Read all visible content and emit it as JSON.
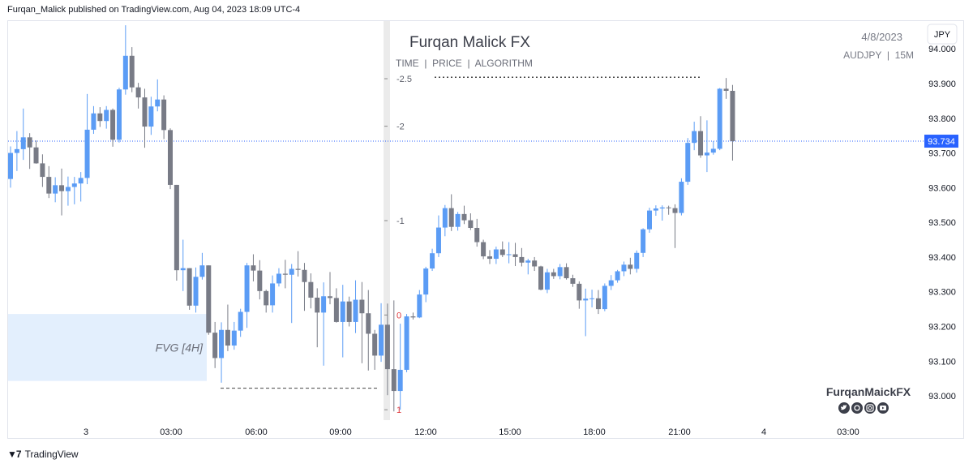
{
  "header": {
    "publish_line": "Furqan_Malick published on TradingView.com, Aug 04, 2023 18:09 UTC-4"
  },
  "overlay": {
    "brand_title": "Furqan Malick FX",
    "brand_subtitle": "TIME  |  PRICE  |  ALGORITHM",
    "date": "4/8/2023",
    "symbol_line": "AUDJPY  |  15M",
    "currency_button": "JPY",
    "fvg_label": "FVG [4H]",
    "watermark": "FurqanMaickFX",
    "social_icons": [
      "twitter-icon",
      "threads-icon",
      "instagram-icon",
      "youtube-icon"
    ]
  },
  "footer": {
    "brand": "TradingView"
  },
  "chart_data": {
    "type": "candlestick",
    "symbol": "AUDJPY",
    "timeframe": "15M",
    "current_price": 93.734,
    "current_price_label": "93.734",
    "ylim": [
      92.93,
      94.08
    ],
    "y_ticks": [
      "94.000",
      "93.900",
      "93.800",
      "93.700",
      "93.600",
      "93.500",
      "93.400",
      "93.300",
      "93.200",
      "93.100",
      "93.000"
    ],
    "x_ticks": [
      "3",
      "03:00",
      "06:00",
      "09:00",
      "12:00",
      "15:00",
      "18:00",
      "21:00",
      "4",
      "03:00"
    ],
    "fib_levels": [
      {
        "label": "-2.5",
        "price": 93.914
      },
      {
        "label": "-2",
        "price": 93.777
      },
      {
        "label": "-1",
        "price": 93.505
      },
      {
        "label": "0",
        "price": 93.233
      },
      {
        "label": "1",
        "price": 92.96
      }
    ],
    "fvg_zone": {
      "label": "FVG [4H]",
      "top": 93.236,
      "bottom": 93.043
    },
    "dashed_low_level": 93.022,
    "dotted_high_level": 93.918,
    "colors": {
      "up": "#5b9cf5",
      "down": "#787b86",
      "fvg_fill": "#e3effd",
      "price_line": "#2962ff",
      "killzone": "#ebebeb"
    },
    "candles": [
      {
        "o": 93.625,
        "h": 93.719,
        "l": 93.6,
        "c": 93.7
      },
      {
        "o": 93.7,
        "h": 93.763,
        "l": 93.648,
        "c": 93.711
      },
      {
        "o": 93.711,
        "h": 93.828,
        "l": 93.68,
        "c": 93.745
      },
      {
        "o": 93.745,
        "h": 93.757,
        "l": 93.654,
        "c": 93.716
      },
      {
        "o": 93.716,
        "h": 93.736,
        "l": 93.669,
        "c": 93.67
      },
      {
        "o": 93.67,
        "h": 93.696,
        "l": 93.602,
        "c": 93.631
      },
      {
        "o": 93.631,
        "h": 93.662,
        "l": 93.57,
        "c": 93.583
      },
      {
        "o": 93.583,
        "h": 93.63,
        "l": 93.558,
        "c": 93.607
      },
      {
        "o": 93.607,
        "h": 93.655,
        "l": 93.52,
        "c": 93.59
      },
      {
        "o": 93.59,
        "h": 93.632,
        "l": 93.548,
        "c": 93.602
      },
      {
        "o": 93.602,
        "h": 93.631,
        "l": 93.552,
        "c": 93.612
      },
      {
        "o": 93.612,
        "h": 93.645,
        "l": 93.56,
        "c": 93.628
      },
      {
        "o": 93.628,
        "h": 93.87,
        "l": 93.61,
        "c": 93.767
      },
      {
        "o": 93.767,
        "h": 93.835,
        "l": 93.755,
        "c": 93.814
      },
      {
        "o": 93.814,
        "h": 93.832,
        "l": 93.775,
        "c": 93.792
      },
      {
        "o": 93.792,
        "h": 93.835,
        "l": 93.77,
        "c": 93.824
      },
      {
        "o": 93.824,
        "h": 93.828,
        "l": 93.718,
        "c": 93.738
      },
      {
        "o": 93.738,
        "h": 93.888,
        "l": 93.73,
        "c": 93.883
      },
      {
        "o": 93.883,
        "h": 94.068,
        "l": 93.868,
        "c": 93.98
      },
      {
        "o": 93.98,
        "h": 94.005,
        "l": 93.875,
        "c": 93.889
      },
      {
        "o": 93.889,
        "h": 93.902,
        "l": 93.828,
        "c": 93.86
      },
      {
        "o": 93.86,
        "h": 93.885,
        "l": 93.715,
        "c": 93.776
      },
      {
        "o": 93.776,
        "h": 93.862,
        "l": 93.752,
        "c": 93.834
      },
      {
        "o": 93.834,
        "h": 93.912,
        "l": 93.82,
        "c": 93.854
      },
      {
        "o": 93.854,
        "h": 93.866,
        "l": 93.74,
        "c": 93.766
      },
      {
        "o": 93.766,
        "h": 93.771,
        "l": 93.596,
        "c": 93.608
      },
      {
        "o": 93.608,
        "h": 93.608,
        "l": 93.332,
        "c": 93.362
      },
      {
        "o": 93.362,
        "h": 93.45,
        "l": 93.302,
        "c": 93.368
      },
      {
        "o": 93.368,
        "h": 93.368,
        "l": 93.248,
        "c": 93.26
      },
      {
        "o": 93.26,
        "h": 93.37,
        "l": 93.24,
        "c": 93.343
      },
      {
        "o": 93.343,
        "h": 93.412,
        "l": 93.335,
        "c": 93.376
      },
      {
        "o": 93.376,
        "h": 93.376,
        "l": 93.176,
        "c": 93.182
      },
      {
        "o": 93.182,
        "h": 93.213,
        "l": 93.08,
        "c": 93.109
      },
      {
        "o": 93.109,
        "h": 93.212,
        "l": 93.038,
        "c": 93.19
      },
      {
        "o": 93.19,
        "h": 93.263,
        "l": 93.129,
        "c": 93.145
      },
      {
        "o": 93.145,
        "h": 93.213,
        "l": 93.133,
        "c": 93.188
      },
      {
        "o": 93.188,
        "h": 93.251,
        "l": 93.17,
        "c": 93.242
      },
      {
        "o": 93.242,
        "h": 93.383,
        "l": 93.196,
        "c": 93.376
      },
      {
        "o": 93.376,
        "h": 93.408,
        "l": 93.33,
        "c": 93.361
      },
      {
        "o": 93.361,
        "h": 93.391,
        "l": 93.278,
        "c": 93.302
      },
      {
        "o": 93.302,
        "h": 93.306,
        "l": 93.24,
        "c": 93.261
      },
      {
        "o": 93.261,
        "h": 93.347,
        "l": 93.24,
        "c": 93.324
      },
      {
        "o": 93.324,
        "h": 93.368,
        "l": 93.315,
        "c": 93.352
      },
      {
        "o": 93.352,
        "h": 93.392,
        "l": 93.31,
        "c": 93.349
      },
      {
        "o": 93.349,
        "h": 93.38,
        "l": 93.21,
        "c": 93.366
      },
      {
        "o": 93.366,
        "h": 93.417,
        "l": 93.344,
        "c": 93.363
      },
      {
        "o": 93.363,
        "h": 93.383,
        "l": 93.245,
        "c": 93.328
      },
      {
        "o": 93.328,
        "h": 93.353,
        "l": 93.252,
        "c": 93.283
      },
      {
        "o": 93.283,
        "h": 93.31,
        "l": 93.14,
        "c": 93.24
      },
      {
        "o": 93.24,
        "h": 93.327,
        "l": 93.087,
        "c": 93.287
      },
      {
        "o": 93.287,
        "h": 93.357,
        "l": 93.264,
        "c": 93.282
      },
      {
        "o": 93.282,
        "h": 93.31,
        "l": 93.211,
        "c": 93.213
      },
      {
        "o": 93.213,
        "h": 93.32,
        "l": 93.111,
        "c": 93.272
      },
      {
        "o": 93.272,
        "h": 93.286,
        "l": 93.2,
        "c": 93.213
      },
      {
        "o": 93.213,
        "h": 93.333,
        "l": 93.181,
        "c": 93.277
      },
      {
        "o": 93.277,
        "h": 93.328,
        "l": 93.094,
        "c": 93.238
      },
      {
        "o": 93.238,
        "h": 93.305,
        "l": 93.073,
        "c": 93.179
      },
      {
        "o": 93.179,
        "h": 93.19,
        "l": 93.075,
        "c": 93.116
      },
      {
        "o": 93.116,
        "h": 93.267,
        "l": 93.098,
        "c": 93.205
      },
      {
        "o": 93.205,
        "h": 93.266,
        "l": 93.002,
        "c": 93.077
      },
      {
        "o": 93.077,
        "h": 93.275,
        "l": 92.955,
        "c": 93.014
      },
      {
        "o": 93.014,
        "h": 93.208,
        "l": 92.96,
        "c": 93.075
      },
      {
        "o": 93.075,
        "h": 93.236,
        "l": 93.068,
        "c": 93.229
      },
      {
        "o": 93.229,
        "h": 93.24,
        "l": 93.22,
        "c": 93.226
      },
      {
        "o": 93.226,
        "h": 93.305,
        "l": 93.224,
        "c": 93.292
      },
      {
        "o": 93.292,
        "h": 93.372,
        "l": 93.27,
        "c": 93.367
      },
      {
        "o": 93.367,
        "h": 93.424,
        "l": 93.36,
        "c": 93.411
      },
      {
        "o": 93.411,
        "h": 93.52,
        "l": 93.4,
        "c": 93.485
      },
      {
        "o": 93.485,
        "h": 93.55,
        "l": 93.46,
        "c": 93.541
      },
      {
        "o": 93.541,
        "h": 93.581,
        "l": 93.475,
        "c": 93.487
      },
      {
        "o": 93.487,
        "h": 93.53,
        "l": 93.476,
        "c": 93.524
      },
      {
        "o": 93.524,
        "h": 93.548,
        "l": 93.495,
        "c": 93.506
      },
      {
        "o": 93.506,
        "h": 93.526,
        "l": 93.478,
        "c": 93.484
      },
      {
        "o": 93.484,
        "h": 93.51,
        "l": 93.43,
        "c": 93.443
      },
      {
        "o": 93.443,
        "h": 93.45,
        "l": 93.394,
        "c": 93.402
      },
      {
        "o": 93.402,
        "h": 93.42,
        "l": 93.38,
        "c": 93.395
      },
      {
        "o": 93.395,
        "h": 93.43,
        "l": 93.38,
        "c": 93.422
      },
      {
        "o": 93.422,
        "h": 93.445,
        "l": 93.4,
        "c": 93.406
      },
      {
        "o": 93.406,
        "h": 93.443,
        "l": 93.382,
        "c": 93.408
      },
      {
        "o": 93.408,
        "h": 93.441,
        "l": 93.374,
        "c": 93.4
      },
      {
        "o": 93.4,
        "h": 93.426,
        "l": 93.373,
        "c": 93.384
      },
      {
        "o": 93.384,
        "h": 93.395,
        "l": 93.35,
        "c": 93.39
      },
      {
        "o": 93.39,
        "h": 93.4,
        "l": 93.36,
        "c": 93.373
      },
      {
        "o": 93.373,
        "h": 93.375,
        "l": 93.304,
        "c": 93.306
      },
      {
        "o": 93.306,
        "h": 93.366,
        "l": 93.296,
        "c": 93.356
      },
      {
        "o": 93.356,
        "h": 93.366,
        "l": 93.337,
        "c": 93.345
      },
      {
        "o": 93.345,
        "h": 93.38,
        "l": 93.336,
        "c": 93.371
      },
      {
        "o": 93.371,
        "h": 93.382,
        "l": 93.335,
        "c": 93.339
      },
      {
        "o": 93.339,
        "h": 93.349,
        "l": 93.314,
        "c": 93.323
      },
      {
        "o": 93.323,
        "h": 93.33,
        "l": 93.251,
        "c": 93.275
      },
      {
        "o": 93.275,
        "h": 93.309,
        "l": 93.172,
        "c": 93.28
      },
      {
        "o": 93.28,
        "h": 93.306,
        "l": 93.255,
        "c": 93.281
      },
      {
        "o": 93.281,
        "h": 93.305,
        "l": 93.236,
        "c": 93.25
      },
      {
        "o": 93.25,
        "h": 93.324,
        "l": 93.244,
        "c": 93.317
      },
      {
        "o": 93.317,
        "h": 93.348,
        "l": 93.305,
        "c": 93.333
      },
      {
        "o": 93.333,
        "h": 93.363,
        "l": 93.326,
        "c": 93.359
      },
      {
        "o": 93.359,
        "h": 93.387,
        "l": 93.345,
        "c": 93.378
      },
      {
        "o": 93.378,
        "h": 93.398,
        "l": 93.35,
        "c": 93.366
      },
      {
        "o": 93.366,
        "h": 93.419,
        "l": 93.355,
        "c": 93.412
      },
      {
        "o": 93.412,
        "h": 93.483,
        "l": 93.4,
        "c": 93.48
      },
      {
        "o": 93.48,
        "h": 93.542,
        "l": 93.47,
        "c": 93.534
      },
      {
        "o": 93.534,
        "h": 93.549,
        "l": 93.519,
        "c": 93.54
      },
      {
        "o": 93.54,
        "h": 93.549,
        "l": 93.505,
        "c": 93.543
      },
      {
        "o": 93.543,
        "h": 93.548,
        "l": 93.522,
        "c": 93.541
      },
      {
        "o": 93.541,
        "h": 93.552,
        "l": 93.426,
        "c": 93.527
      },
      {
        "o": 93.527,
        "h": 93.627,
        "l": 93.52,
        "c": 93.617
      },
      {
        "o": 93.617,
        "h": 93.743,
        "l": 93.608,
        "c": 93.729
      },
      {
        "o": 93.729,
        "h": 93.79,
        "l": 93.708,
        "c": 93.763
      },
      {
        "o": 93.763,
        "h": 93.806,
        "l": 93.686,
        "c": 93.693
      },
      {
        "o": 93.693,
        "h": 93.794,
        "l": 93.645,
        "c": 93.701
      },
      {
        "o": 93.701,
        "h": 93.734,
        "l": 93.695,
        "c": 93.712
      },
      {
        "o": 93.712,
        "h": 93.887,
        "l": 93.708,
        "c": 93.885
      },
      {
        "o": 93.885,
        "h": 93.916,
        "l": 93.856,
        "c": 93.879
      },
      {
        "o": 93.879,
        "h": 93.896,
        "l": 93.678,
        "c": 93.734
      }
    ]
  }
}
